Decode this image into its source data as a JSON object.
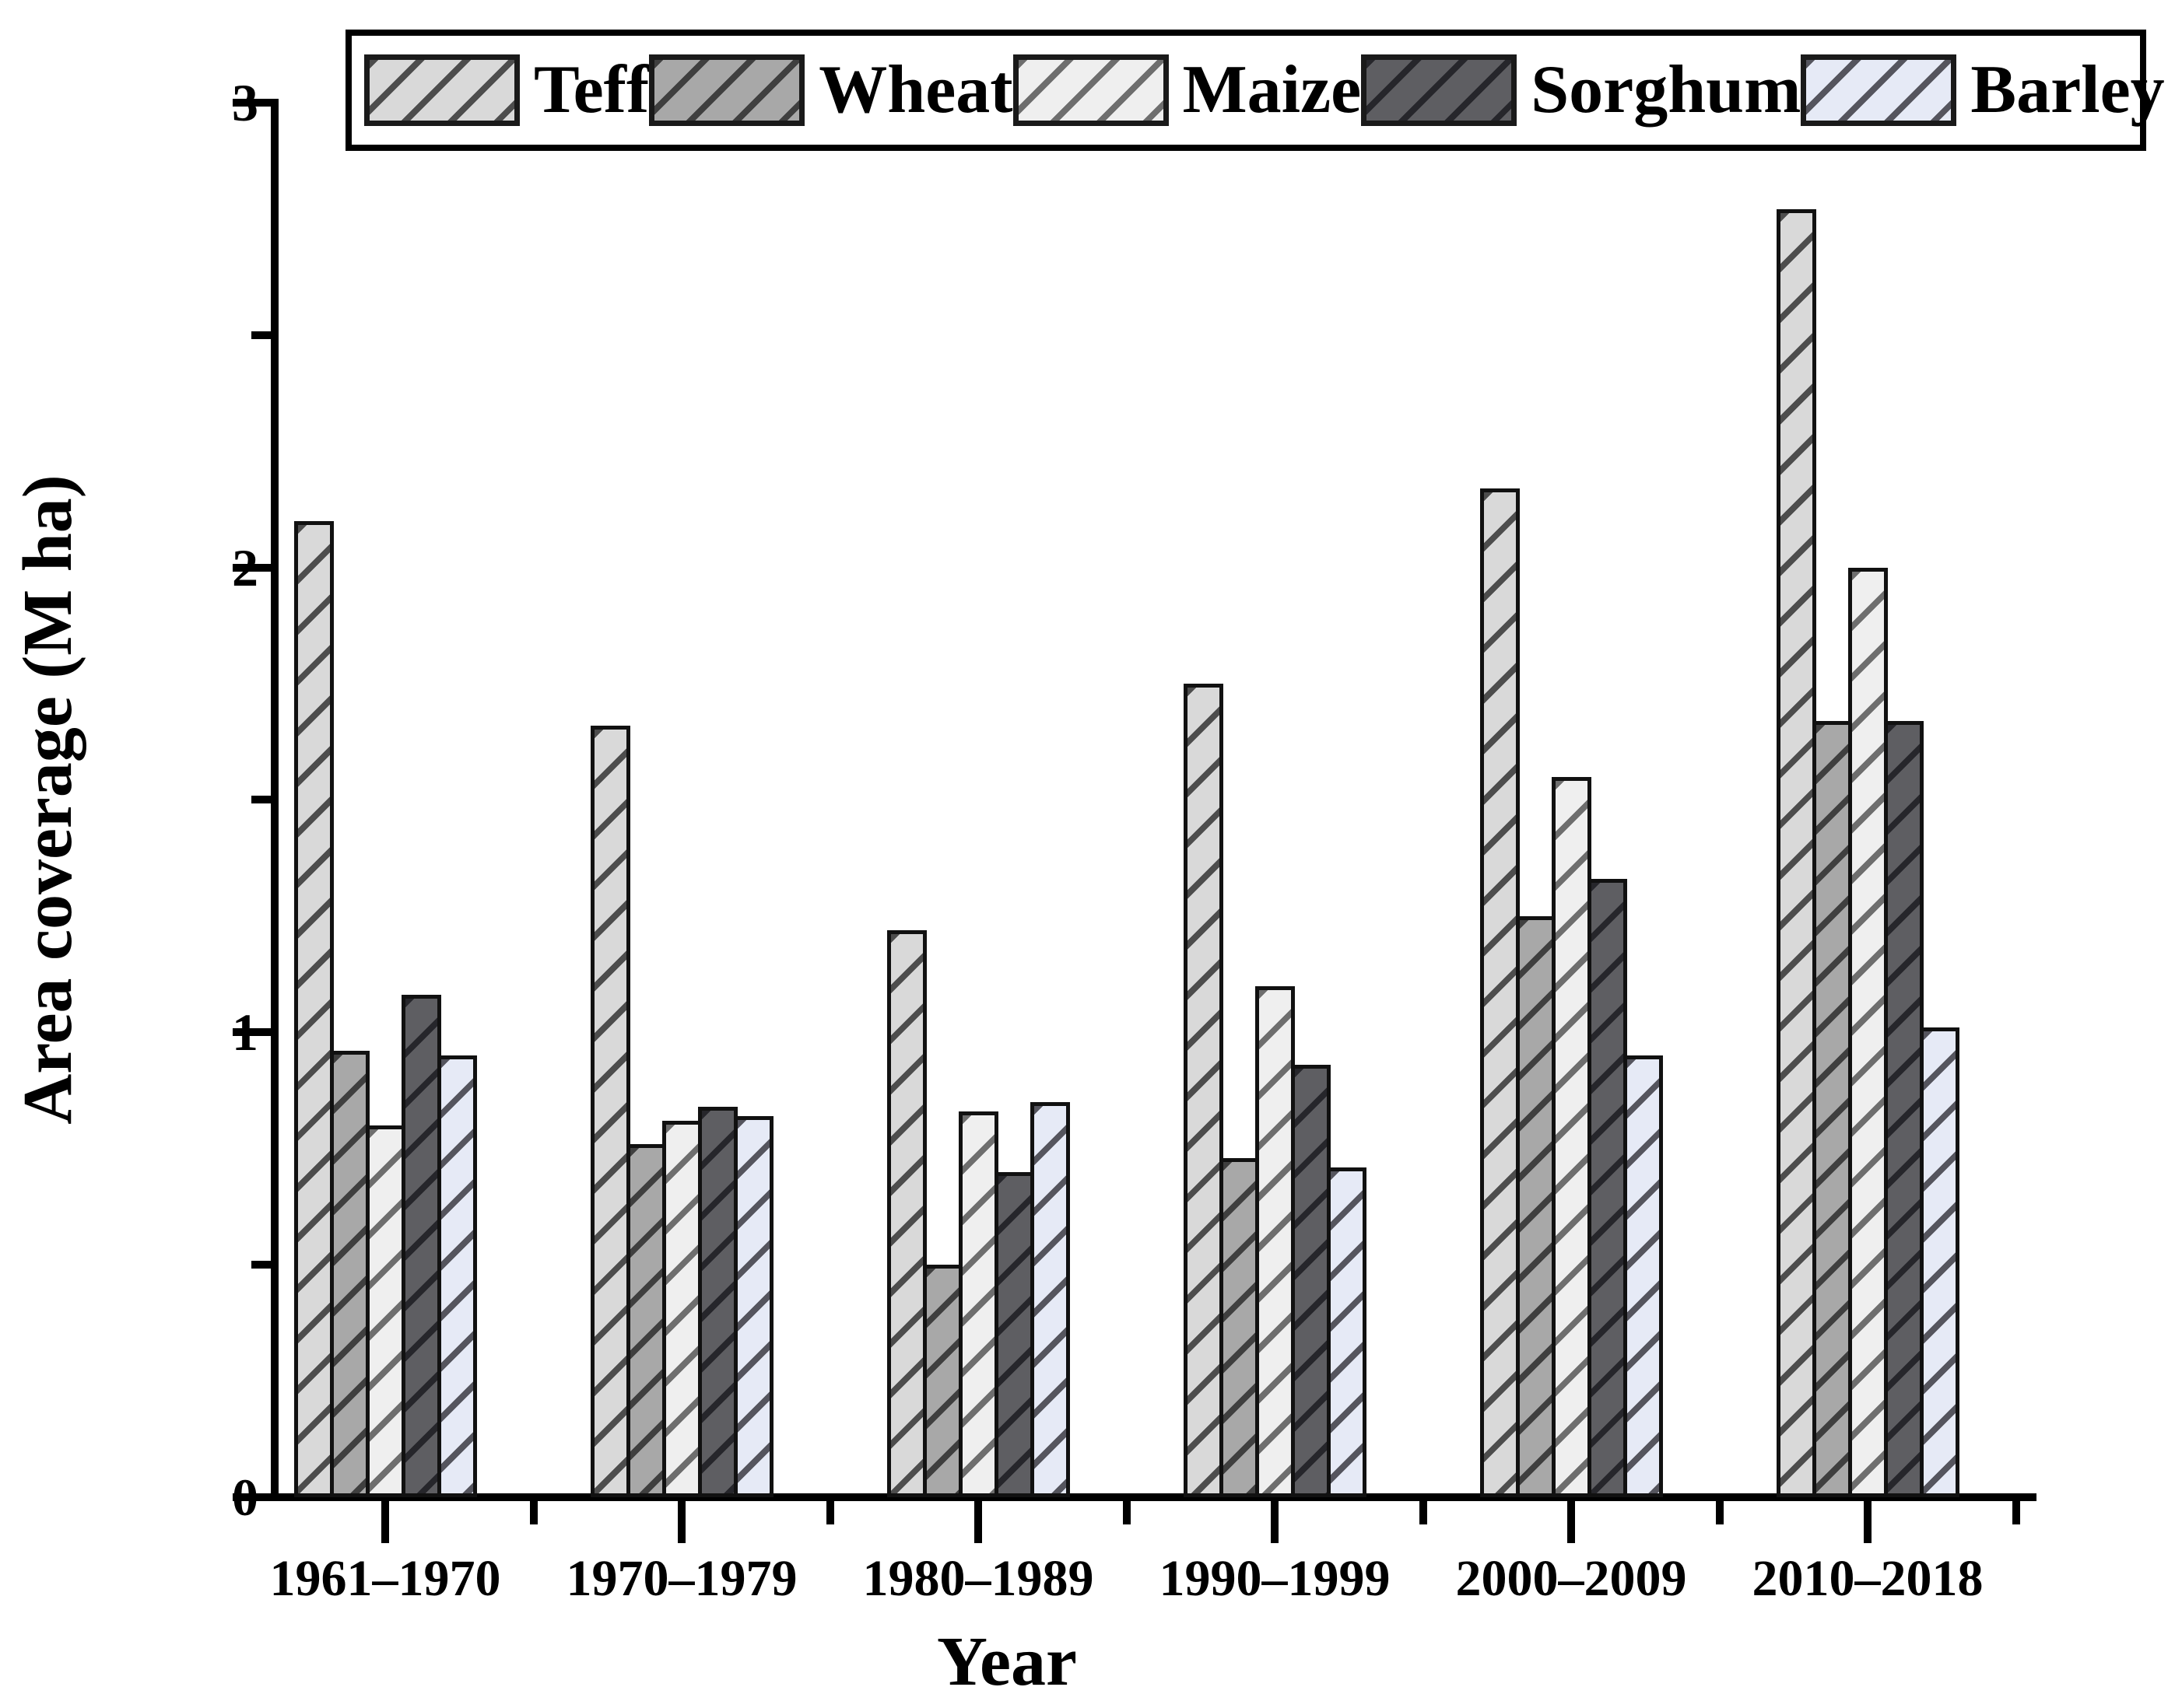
{
  "page": {
    "background": "#ffffff",
    "text_color": "#000000"
  },
  "chart_data": {
    "type": "bar",
    "title": "",
    "xlabel": "Year",
    "ylabel": "Area coverage (M ha)",
    "categories": [
      "1961–1970",
      "1970–1979",
      "1980–1989",
      "1990–1999",
      "2000–2009",
      "2010–2018"
    ],
    "series": [
      {
        "name": "Teff",
        "fill": "#d9d9d9",
        "hatch": "#4d4d4d",
        "values": [
          2.1,
          1.66,
          1.22,
          1.75,
          2.17,
          2.77
        ]
      },
      {
        "name": "Wheat",
        "fill": "#a8a8a8",
        "hatch": "#3f3f3f",
        "values": [
          0.96,
          0.76,
          0.5,
          0.73,
          1.25,
          1.67
        ]
      },
      {
        "name": "Maize",
        "fill": "#efefef",
        "hatch": "#6e6e6e",
        "values": [
          0.8,
          0.81,
          0.83,
          1.1,
          1.55,
          2.0
        ]
      },
      {
        "name": "Sorghum",
        "fill": "#5e5e62",
        "hatch": "#26262b",
        "values": [
          1.08,
          0.84,
          0.7,
          0.93,
          1.33,
          1.67
        ]
      },
      {
        "name": "Barley",
        "fill": "#e6eaf6",
        "hatch": "#55555e",
        "values": [
          0.95,
          0.82,
          0.85,
          0.71,
          0.95,
          1.01
        ]
      }
    ],
    "ylim": [
      0,
      3
    ],
    "y_major_ticks": [
      "0",
      "1",
      "2",
      "3"
    ],
    "y_minor_ticks": [
      0.5,
      1.5,
      2.5
    ],
    "legend_position": "top",
    "legend_border": "#000000",
    "grid": false,
    "bar_outline": "#111111"
  }
}
